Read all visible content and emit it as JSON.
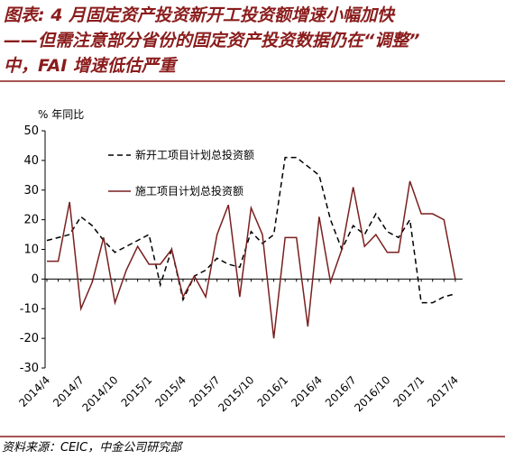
{
  "chart_data": {
    "type": "line",
    "title_lines": [
      "图表: 4 月固定资产投资新开工投资额增速小幅加快",
      "——但需注意部分省份的固定资产投资数据仍在“调整”",
      "中，FAI 增速低估严重"
    ],
    "y_label": "% 年同比",
    "source": "资料来源：CEIC，中金公司研究部",
    "categories": [
      "2014/4",
      null,
      null,
      "2014/7",
      null,
      null,
      "2014/10",
      null,
      null,
      "2015/1",
      null,
      null,
      "2015/4",
      null,
      null,
      "2015/7",
      null,
      null,
      "2015/10",
      null,
      null,
      "2016/1",
      null,
      null,
      "2016/4",
      null,
      null,
      "2016/7",
      null,
      null,
      "2016/10",
      null,
      null,
      "2017/1",
      null,
      null,
      "2017/4"
    ],
    "series": [
      {
        "name": "新开工项目计划总投资额",
        "color": "#000000",
        "dash": true,
        "values": [
          13,
          14,
          15,
          21,
          18,
          13,
          9,
          11,
          13,
          15,
          -2,
          10,
          -7,
          1,
          3,
          7,
          5,
          4,
          16,
          12,
          15,
          41,
          41,
          38,
          35,
          20,
          10,
          18,
          15,
          22,
          16,
          14,
          20,
          -8,
          -8,
          -6,
          -5
        ]
      },
      {
        "name": "施工项目计划总投资额",
        "color": "#7a1f1f",
        "dash": false,
        "values": [
          6,
          6,
          26,
          -10,
          -1,
          14,
          -8,
          3,
          11,
          5,
          5,
          10,
          -6,
          1,
          -6,
          15,
          25,
          -6,
          24,
          15,
          -20,
          14,
          14,
          -16,
          21,
          -1,
          10,
          31,
          11,
          15,
          9,
          9,
          33,
          22,
          22,
          20,
          0
        ]
      }
    ],
    "ylim": [
      -30,
      50
    ],
    "yticks": [
      -30,
      -20,
      -10,
      0,
      10,
      20,
      30,
      40,
      50
    ]
  }
}
